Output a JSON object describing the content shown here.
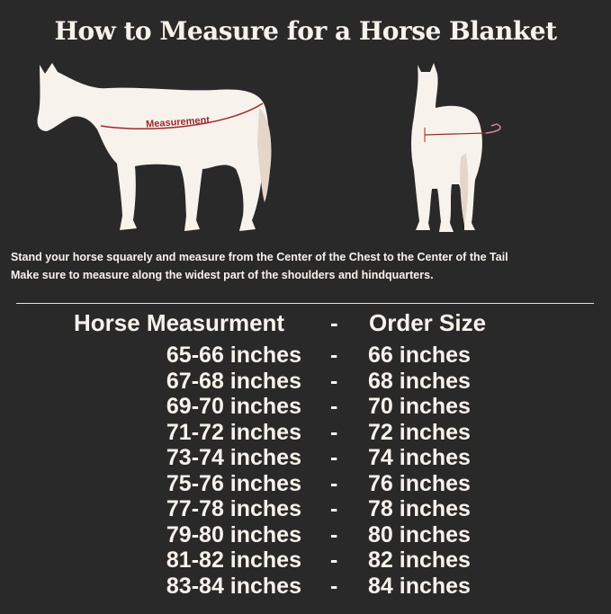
{
  "title": "How to Measure for a Horse Blanket",
  "diagram": {
    "measurement_label": "Measurement",
    "colors": {
      "background": "#2a2929",
      "horse": "#f7f2ec",
      "tail": "#e4d6c8",
      "measure_line": "#9b2a2a"
    }
  },
  "instructions": [
    "Stand your horse squarely and measure from the Center of the Chest to the Center of the Tail",
    "Make sure to measure along the widest part of the shoulders and hindquarters."
  ],
  "table": {
    "headers": {
      "measurement": "Horse Measurment",
      "separator": "-",
      "size": "Order Size"
    },
    "rows": [
      {
        "measurement": "65-66 inches",
        "separator": "-",
        "size": "66 inches"
      },
      {
        "measurement": "67-68 inches",
        "separator": "-",
        "size": "68 inches"
      },
      {
        "measurement": "69-70 inches",
        "separator": "-",
        "size": "70 inches"
      },
      {
        "measurement": "71-72 inches",
        "separator": "-",
        "size": "72 inches"
      },
      {
        "measurement": "73-74 inches",
        "separator": "-",
        "size": "74 inches"
      },
      {
        "measurement": "75-76 inches",
        "separator": "-",
        "size": "76 inches"
      },
      {
        "measurement": "77-78 inches",
        "separator": "-",
        "size": "78 inches"
      },
      {
        "measurement": "79-80 inches",
        "separator": "-",
        "size": "80 inches"
      },
      {
        "measurement": "81-82 inches",
        "separator": "-",
        "size": "82 inches"
      },
      {
        "measurement": "83-84 inches",
        "separator": "-",
        "size": "84 inches"
      }
    ]
  }
}
